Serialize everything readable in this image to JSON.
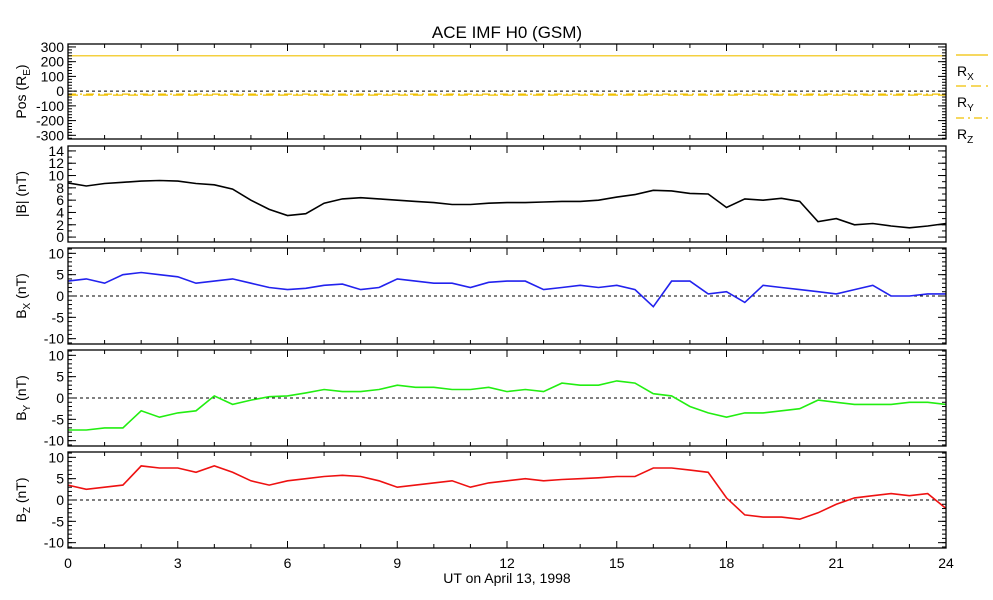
{
  "title": "ACE IMF H0 (GSM)",
  "xlabel": "UT on April 13, 1998",
  "chart_data": {
    "type": "line",
    "title": "ACE IMF H0 (GSM)",
    "xlabel": "UT on April 13, 1998",
    "xlim": [
      0,
      24
    ],
    "xticks": [
      0,
      3,
      6,
      9,
      12,
      15,
      18,
      21,
      24
    ],
    "x_step_hours": 0.5,
    "panels": [
      {
        "id": "pos",
        "ylabel_main": "Pos (R",
        "ylabel_sub": "E",
        "ylabel_end": ")",
        "ylim": [
          -325,
          320
        ],
        "yticks": [
          -300,
          -200,
          -100,
          0,
          100,
          200,
          300
        ],
        "zero_line": true,
        "legend": [
          {
            "label": "R",
            "sub": "X",
            "style": "solid"
          },
          {
            "label": "R",
            "sub": "Y",
            "style": "dash"
          },
          {
            "label": "R",
            "sub": "Z",
            "style": "dashdot"
          }
        ],
        "series": [
          {
            "name": "Rx",
            "color": "#f0c000",
            "style": "solid",
            "values": [
              240,
              240,
              240,
              240,
              240,
              240,
              240,
              240,
              240,
              240,
              240,
              240,
              240,
              240,
              240,
              240,
              240,
              240,
              240,
              240,
              240,
              240,
              240,
              240,
              240,
              240,
              240,
              240,
              240,
              240,
              240,
              240,
              240,
              240,
              240,
              240,
              240,
              240,
              240,
              240,
              240,
              240,
              240,
              240,
              240,
              240,
              240,
              240,
              240
            ]
          },
          {
            "name": "Ry",
            "color": "#f0c000",
            "style": "dash",
            "values": [
              -27,
              -27,
              -27,
              -27,
              -27,
              -27,
              -27,
              -27,
              -27,
              -27,
              -27,
              -27,
              -27,
              -27,
              -27,
              -27,
              -27,
              -27,
              -27,
              -27,
              -27,
              -27,
              -27,
              -27,
              -27,
              -27,
              -27,
              -27,
              -27,
              -27,
              -27,
              -27,
              -27,
              -27,
              -27,
              -27,
              -27,
              -27,
              -27,
              -27,
              -27,
              -27,
              -27,
              -27,
              -27,
              -27,
              -27,
              -27,
              -27
            ]
          },
          {
            "name": "Rz",
            "color": "#f0c000",
            "style": "dashdot",
            "values": [
              -20,
              -20,
              -20,
              -20,
              -20,
              -20,
              -20,
              -20,
              -20,
              -20,
              -20,
              -20,
              -20,
              -20,
              -20,
              -20,
              -20,
              -20,
              -20,
              -20,
              -20,
              -20,
              -20,
              -20,
              -20,
              -20,
              -20,
              -20,
              -20,
              -20,
              -20,
              -20,
              -20,
              -20,
              -20,
              -20,
              -20,
              -20,
              -20,
              -20,
              -20,
              -20,
              -20,
              -20,
              -20,
              -20,
              -20,
              -20,
              -20
            ]
          }
        ]
      },
      {
        "id": "bmag",
        "ylabel_main": "|B| (nT)",
        "ylabel_sub": "",
        "ylabel_end": "",
        "ylim": [
          -0.8,
          14.8
        ],
        "yticks": [
          0,
          2,
          4,
          6,
          8,
          10,
          12,
          14
        ],
        "zero_line": false,
        "series": [
          {
            "name": "|B|",
            "color": "#000000",
            "style": "solid",
            "values": [
              8.8,
              8.3,
              8.7,
              8.9,
              9.1,
              9.2,
              9.1,
              8.7,
              8.5,
              7.8,
              6.0,
              4.5,
              3.5,
              3.8,
              5.5,
              6.2,
              6.4,
              6.2,
              6.0,
              5.8,
              5.6,
              5.3,
              5.3,
              5.5,
              5.6,
              5.6,
              5.7,
              5.8,
              5.8,
              6.0,
              6.5,
              6.9,
              7.6,
              7.5,
              7.1,
              7.0,
              4.8,
              6.2,
              6.0,
              6.3,
              5.8,
              2.5,
              3.0,
              2.0,
              2.2,
              1.8,
              1.5,
              1.8,
              2.2
            ]
          }
        ]
      },
      {
        "id": "bx",
        "ylabel_main": "B",
        "ylabel_sub": "X",
        "ylabel_end": " (nT)",
        "ylim": [
          -11.25,
          11.25
        ],
        "yticks": [
          -10,
          -5,
          0,
          5,
          10
        ],
        "zero_line": true,
        "series": [
          {
            "name": "Bx",
            "color": "#2222ee",
            "style": "solid",
            "values": [
              3.5,
              4.0,
              3.0,
              5.0,
              5.5,
              5.0,
              4.5,
              3.0,
              3.5,
              4.0,
              3.0,
              2.0,
              1.5,
              1.8,
              2.5,
              2.8,
              1.5,
              2.0,
              4.0,
              3.5,
              3.0,
              3.0,
              2.0,
              3.2,
              3.5,
              3.5,
              1.5,
              2.0,
              2.5,
              2.0,
              2.5,
              1.5,
              -2.5,
              3.5,
              3.5,
              0.5,
              1.0,
              -1.5,
              2.5,
              2.0,
              1.5,
              1.0,
              0.5,
              1.5,
              2.5,
              0.0,
              0.0,
              0.5,
              0.5
            ]
          }
        ]
      },
      {
        "id": "by",
        "ylabel_main": "B",
        "ylabel_sub": "Y",
        "ylabel_end": " (nT)",
        "ylim": [
          -11.25,
          11.25
        ],
        "yticks": [
          -10,
          -5,
          0,
          5,
          10
        ],
        "zero_line": true,
        "series": [
          {
            "name": "By",
            "color": "#22ee11",
            "style": "solid",
            "values": [
              -7.5,
              -7.5,
              -7.0,
              -7.0,
              -3.0,
              -4.5,
              -3.5,
              -3.0,
              0.5,
              -1.5,
              -0.5,
              0.3,
              0.5,
              1.2,
              2.0,
              1.5,
              1.5,
              2.0,
              3.0,
              2.5,
              2.5,
              2.0,
              2.0,
              2.5,
              1.5,
              2.0,
              1.5,
              3.5,
              3.0,
              3.0,
              4.0,
              3.5,
              1.0,
              0.5,
              -2.0,
              -3.5,
              -4.5,
              -3.5,
              -3.5,
              -3.0,
              -2.5,
              -0.5,
              -1.0,
              -1.5,
              -1.5,
              -1.5,
              -1.0,
              -1.0,
              -1.5
            ]
          }
        ]
      },
      {
        "id": "bz",
        "ylabel_main": "B",
        "ylabel_sub": "Z",
        "ylabel_end": " (nT)",
        "ylim": [
          -11.25,
          11.25
        ],
        "yticks": [
          -10,
          -5,
          0,
          5,
          10
        ],
        "zero_line": true,
        "series": [
          {
            "name": "Bz",
            "color": "#ee1111",
            "style": "solid",
            "values": [
              3.5,
              2.5,
              3.0,
              3.5,
              8.0,
              7.5,
              7.5,
              6.5,
              8.0,
              6.5,
              4.5,
              3.5,
              4.5,
              5.0,
              5.5,
              5.8,
              5.5,
              4.5,
              3.0,
              3.5,
              4.0,
              4.5,
              3.0,
              4.0,
              4.5,
              5.0,
              4.5,
              4.8,
              5.0,
              5.2,
              5.5,
              5.5,
              7.5,
              7.5,
              7.0,
              6.5,
              0.5,
              -3.5,
              -4.0,
              -4.0,
              -4.5,
              -3.0,
              -1.0,
              0.5,
              1.0,
              1.5,
              1.0,
              1.5,
              -2.0
            ]
          }
        ]
      }
    ]
  }
}
